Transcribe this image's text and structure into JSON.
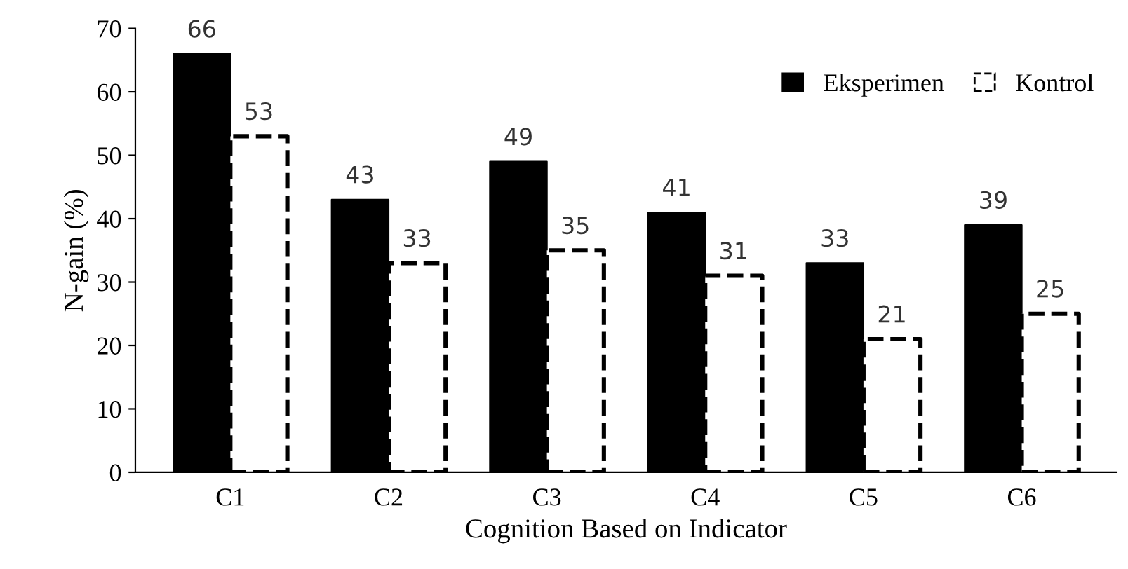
{
  "chart_data": {
    "type": "bar",
    "xlabel": "Cognition Based on Indicator",
    "ylabel": "N-gain (%)",
    "categories": [
      "C1",
      "C2",
      "C3",
      "C4",
      "C5",
      "C6"
    ],
    "series": [
      {
        "name": "Eksperimen",
        "color": "#000000",
        "values": [
          66,
          43,
          49,
          41,
          33,
          39
        ]
      },
      {
        "name": "Kontrol",
        "color": "#ffffff",
        "line_style": "dashed",
        "values": [
          53,
          33,
          35,
          31,
          21,
          25
        ]
      }
    ],
    "ylim": [
      0,
      70
    ],
    "yticks": [
      0,
      10,
      20,
      30,
      40,
      50,
      60,
      70
    ],
    "grid": false,
    "legend": "top right",
    "data_labels": true
  }
}
